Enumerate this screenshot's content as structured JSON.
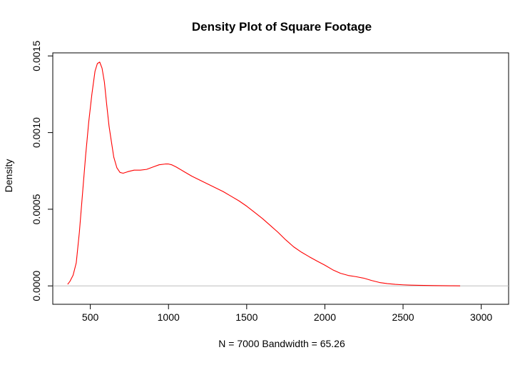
{
  "chart_data": {
    "type": "line",
    "title": "Density Plot of Square Footage",
    "xlabel": "N = 7000   Bandwidth = 65.26",
    "ylabel": "Density",
    "xlim": [
      260,
      3175
    ],
    "ylim": [
      -0.00012,
      0.00152
    ],
    "x_ticks": [
      500,
      1000,
      1500,
      2000,
      2500,
      3000
    ],
    "y_ticks": [
      0.0,
      0.0005,
      0.001,
      0.0015
    ],
    "x_tick_labels": [
      "500",
      "1000",
      "1500",
      "2000",
      "2500",
      "3000"
    ],
    "y_tick_labels": [
      "0.0000",
      "0.0005",
      "0.0010",
      "0.0015"
    ],
    "line_color": "#ff0000",
    "zero_line_color": "#bebebe",
    "grid": false,
    "legend": "none",
    "series": [
      {
        "x": [
          355,
          370,
          390,
          410,
          430,
          450,
          470,
          490,
          510,
          530,
          545,
          560,
          575,
          590,
          605,
          620,
          635,
          650,
          670,
          690,
          710,
          740,
          780,
          820,
          860,
          900,
          940,
          980,
          1000,
          1020,
          1050,
          1100,
          1150,
          1200,
          1250,
          1300,
          1350,
          1400,
          1450,
          1500,
          1550,
          1600,
          1650,
          1700,
          1750,
          1800,
          1850,
          1900,
          1950,
          2000,
          2050,
          2100,
          2150,
          2200,
          2250,
          2300,
          2350,
          2400,
          2450,
          2500,
          2550,
          2600,
          2700,
          2800,
          2865
        ],
        "y": [
          1e-05,
          3e-05,
          7e-05,
          0.00015,
          0.00035,
          0.0006,
          0.00085,
          0.00107,
          0.00125,
          0.0014,
          0.00145,
          0.00146,
          0.00142,
          0.00133,
          0.00118,
          0.00104,
          0.00094,
          0.00084,
          0.00077,
          0.00074,
          0.000735,
          0.000745,
          0.000755,
          0.000755,
          0.00076,
          0.000775,
          0.00079,
          0.000795,
          0.000795,
          0.00079,
          0.000775,
          0.000745,
          0.000715,
          0.00069,
          0.000665,
          0.00064,
          0.000615,
          0.000585,
          0.000555,
          0.00052,
          0.00048,
          0.00044,
          0.000395,
          0.00035,
          0.0003,
          0.000255,
          0.00022,
          0.00019,
          0.000162,
          0.000135,
          0.000105,
          8.2e-05,
          6.8e-05,
          6e-05,
          5e-05,
          3.5e-05,
          2.2e-05,
          1.5e-05,
          1e-05,
          7e-06,
          5e-06,
          4e-06,
          2e-06,
          1e-06,
          5e-07
        ]
      }
    ]
  }
}
